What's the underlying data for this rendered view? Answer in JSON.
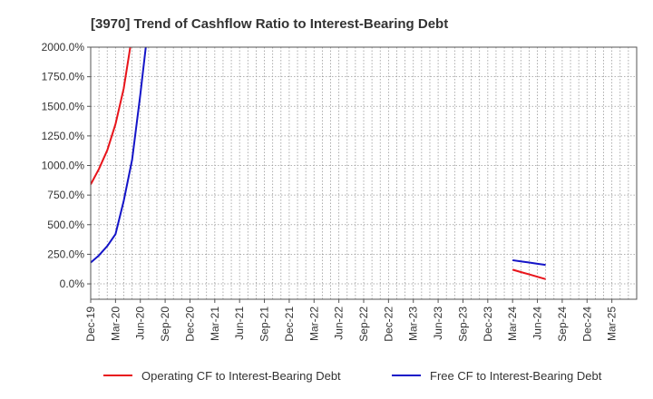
{
  "chart_data": {
    "type": "line",
    "title": "[3970]  Trend of Cashflow Ratio to Interest-Bearing Debt",
    "xlabel": "",
    "ylabel": "",
    "x_categories": [
      "Dec-19",
      "Mar-20",
      "Jun-20",
      "Sep-20",
      "Dec-20",
      "Mar-21",
      "Jun-21",
      "Sep-21",
      "Dec-21",
      "Mar-22",
      "Jun-22",
      "Sep-22",
      "Dec-22",
      "Mar-23",
      "Jun-23",
      "Sep-23",
      "Dec-23",
      "Mar-24",
      "Jun-24",
      "Sep-24",
      "Dec-24",
      "Mar-25"
    ],
    "y_ticks": [
      "0.0%",
      "250.0%",
      "500.0%",
      "750.0%",
      "1000.0%",
      "1250.0%",
      "1500.0%",
      "1750.0%",
      "2000.0%"
    ],
    "ylim": [
      -130,
      2000
    ],
    "grid": true,
    "legend_position": "bottom",
    "series": [
      {
        "name": "Operating CF to Interest-Bearing Debt",
        "color": "#e8141b",
        "segments": [
          [
            [
              0,
              840
            ],
            [
              0.33,
              970
            ],
            [
              0.67,
              1130
            ],
            [
              1,
              1350
            ],
            [
              1.33,
              1650
            ],
            [
              1.67,
              2100
            ]
          ],
          [
            [
              17,
              120
            ],
            [
              17.33,
              100
            ],
            [
              17.67,
              80
            ],
            [
              18,
              60
            ],
            [
              18.33,
              40
            ]
          ]
        ]
      },
      {
        "name": "Free CF to Interest-Bearing Debt",
        "color": "#1414c8",
        "segments": [
          [
            [
              0,
              180
            ],
            [
              0.33,
              240
            ],
            [
              0.67,
              320
            ],
            [
              1,
              420
            ],
            [
              1.33,
              700
            ],
            [
              1.67,
              1050
            ],
            [
              2,
              1600
            ],
            [
              2.33,
              2200
            ]
          ],
          [
            [
              17,
              200
            ],
            [
              17.33,
              190
            ],
            [
              17.67,
              180
            ],
            [
              18,
              170
            ],
            [
              18.33,
              160
            ]
          ]
        ]
      }
    ]
  }
}
